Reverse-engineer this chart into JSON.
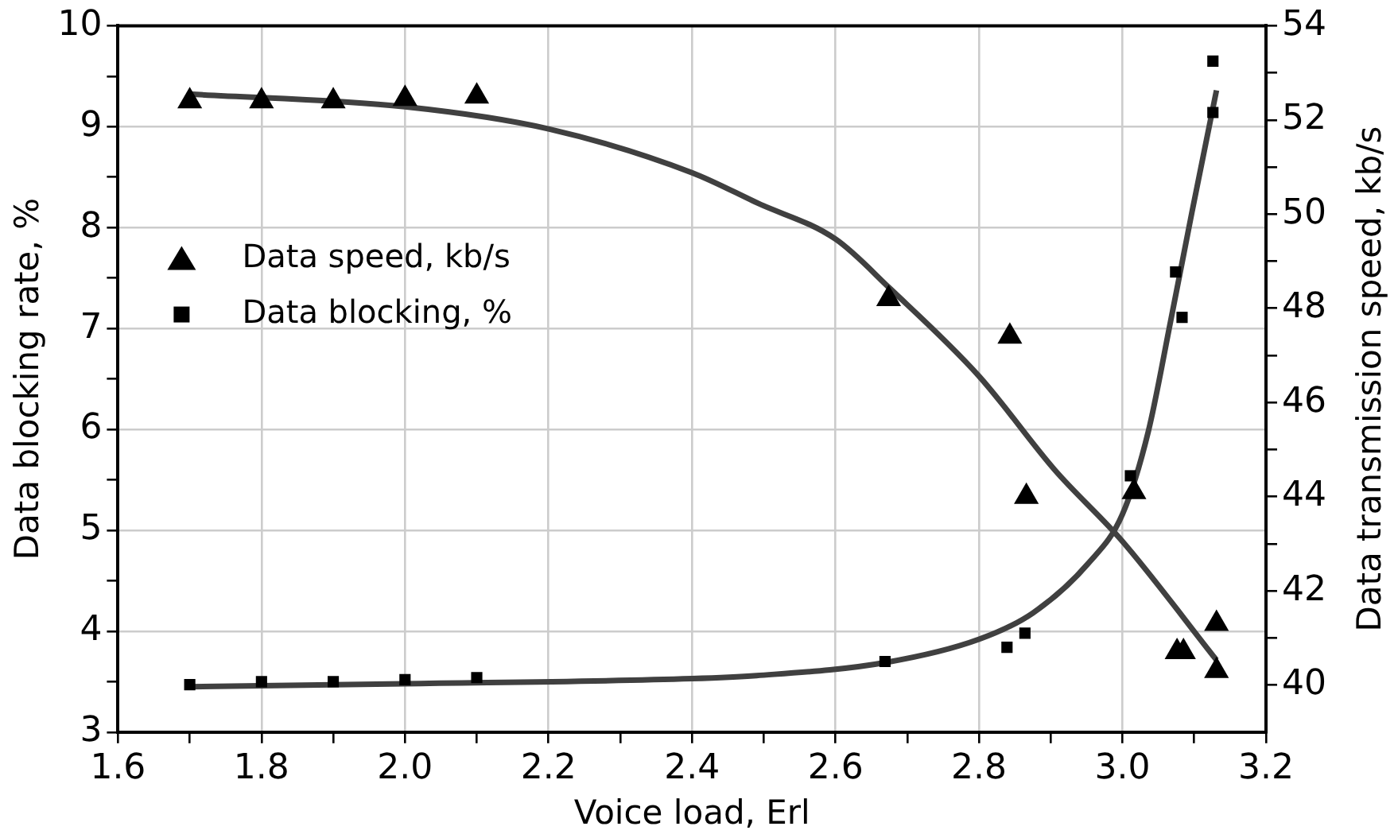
{
  "chart_data": {
    "type": "scatter",
    "xlabel": "Voice load, Erl",
    "ylabel": "Data blocking rate, %",
    "y2label": "Data transmission speed, kb/s",
    "xlim": [
      1.6,
      3.2
    ],
    "xticks": [
      1.6,
      {
        "value": 1.7,
        "label": null
      },
      1.8,
      {
        "value": 1.9,
        "label": null
      },
      {
        "value": 2,
        "label": "2.0"
      },
      {
        "value": 2.1,
        "label": null
      },
      2.2,
      {
        "value": 2.3,
        "label": null
      },
      2.4,
      {
        "value": 2.5,
        "label": null
      },
      2.6,
      {
        "value": 2.7,
        "label": null
      },
      2.8,
      {
        "value": 2.9,
        "label": null
      },
      {
        "value": 3,
        "label": "3.0"
      },
      {
        "value": 3.1,
        "label": null
      },
      3.2
    ],
    "ylim": [
      3,
      10
    ],
    "yticks": [
      3,
      {
        "value": 3.5,
        "label": null
      },
      4,
      {
        "value": 4.5,
        "label": null
      },
      5,
      {
        "value": 5.5,
        "label": null
      },
      6,
      {
        "value": 6.5,
        "label": null
      },
      7,
      {
        "value": 7.5,
        "label": null
      },
      8,
      {
        "value": 8.5,
        "label": null
      },
      9,
      {
        "value": 9.5,
        "label": null
      },
      10
    ],
    "y2lim": [
      39,
      54
    ],
    "y2ticks": [
      40,
      {
        "value": 41,
        "label": null
      },
      42,
      {
        "value": 43,
        "label": null
      },
      44,
      {
        "value": 45,
        "label": null
      },
      46,
      {
        "value": 47,
        "label": null
      },
      48,
      {
        "value": 49,
        "label": null
      },
      50,
      {
        "value": 51,
        "label": null
      },
      52,
      {
        "value": 53,
        "label": null
      },
      54
    ],
    "grid": true,
    "legend": "top left",
    "series": [
      {
        "name": "Data speed, kb/s",
        "marker": "triangle",
        "axis": "y2",
        "color": "#000000",
        "x": [
          1.7,
          1.8,
          1.9,
          2.0,
          2.1,
          2.674,
          2.843,
          2.866,
          3.016,
          3.076,
          3.085,
          3.131,
          3.131
        ],
        "values": [
          52.4,
          52.4,
          52.4,
          52.45,
          52.5,
          48.2,
          47.4,
          44.0,
          44.1,
          40.7,
          40.7,
          41.3,
          40.3
        ]
      },
      {
        "name": "Data blocking, %",
        "marker": "square",
        "axis": "y",
        "color": "#000000",
        "x": [
          1.7,
          1.8,
          1.9,
          2.0,
          2.1,
          2.669,
          2.839,
          2.864,
          3.011,
          3.074,
          3.083,
          3.126,
          3.126
        ],
        "values": [
          3.47,
          3.5,
          3.5,
          3.52,
          3.54,
          3.7,
          3.84,
          3.98,
          5.54,
          7.56,
          7.11,
          9.65,
          9.14
        ]
      },
      {
        "type": "line",
        "marker": "none",
        "axis": "y2",
        "color": "#404040",
        "x": [
          1.7,
          2.0,
          2.2,
          2.4,
          2.492,
          2.6,
          2.676,
          2.8,
          2.906,
          3.0,
          3.131
        ],
        "values": [
          52.55,
          52.28,
          51.81,
          50.88,
          50.23,
          49.47,
          48.42,
          46.56,
          44.56,
          43.05,
          40.53
        ]
      },
      {
        "type": "line",
        "marker": "none",
        "axis": "y",
        "color": "#404040",
        "x": [
          1.7,
          2.0,
          2.4,
          2.49,
          2.67,
          2.8,
          2.875,
          2.952,
          3.0,
          3.036,
          3.067,
          3.097,
          3.131
        ],
        "values": [
          3.45,
          3.48,
          3.53,
          3.56,
          3.69,
          3.92,
          4.18,
          4.67,
          5.16,
          5.98,
          7.07,
          8.16,
          9.36
        ]
      }
    ]
  }
}
